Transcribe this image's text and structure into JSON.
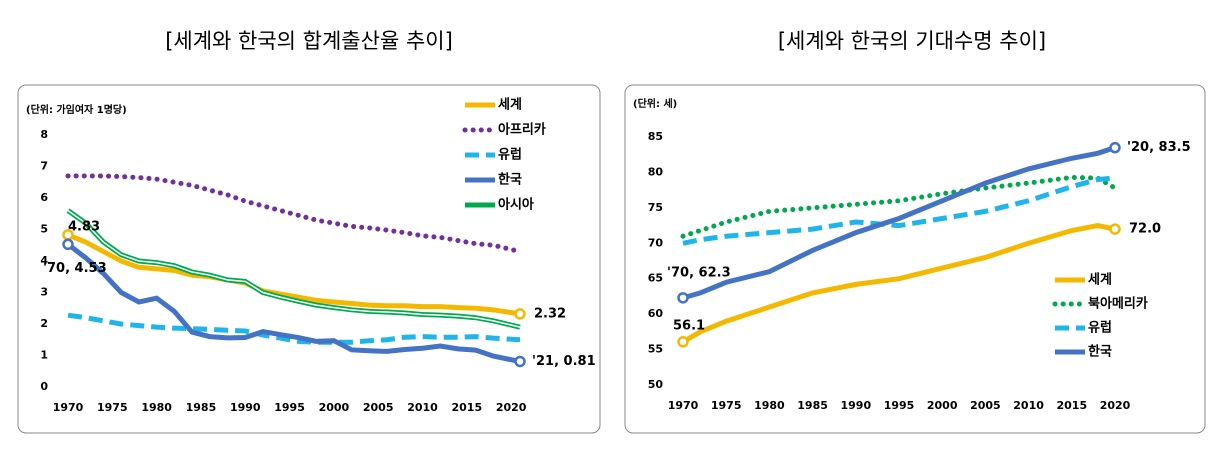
{
  "chart_data": [
    {
      "type": "line",
      "title": "[세계와 한국의 합계출산율 추이]",
      "unit_label": "(단위: 가임여자 1명당)",
      "x": [
        1970,
        1972,
        1974,
        1976,
        1978,
        1980,
        1982,
        1984,
        1986,
        1988,
        1990,
        1992,
        1994,
        1996,
        1998,
        2000,
        2002,
        2004,
        2006,
        2008,
        2010,
        2012,
        2014,
        2016,
        2018,
        2021
      ],
      "xlim": [
        1970,
        2021
      ],
      "xticks": [
        1970,
        1975,
        1980,
        1985,
        1990,
        1995,
        2000,
        2005,
        2010,
        2015,
        2020
      ],
      "ylim": [
        0,
        8
      ],
      "yticks": [
        0,
        1,
        2,
        3,
        4,
        5,
        6,
        7,
        8
      ],
      "series": [
        {
          "name": "세계",
          "color": "#f5b800",
          "style": "solid",
          "values": [
            4.83,
            4.6,
            4.3,
            4.0,
            3.8,
            3.75,
            3.7,
            3.55,
            3.5,
            3.4,
            3.3,
            3.05,
            2.95,
            2.85,
            2.75,
            2.7,
            2.65,
            2.6,
            2.58,
            2.58,
            2.55,
            2.55,
            2.52,
            2.5,
            2.45,
            2.32
          ]
        },
        {
          "name": "아프리카",
          "color": "#7030a0",
          "style": "dotted",
          "values": [
            6.7,
            6.7,
            6.7,
            6.68,
            6.65,
            6.6,
            6.5,
            6.4,
            6.25,
            6.1,
            5.9,
            5.75,
            5.6,
            5.45,
            5.3,
            5.2,
            5.1,
            5.05,
            4.98,
            4.9,
            4.8,
            4.75,
            4.65,
            4.55,
            4.5,
            4.3
          ]
        },
        {
          "name": "유럽",
          "color": "#1fb5ea",
          "style": "dashed",
          "values": [
            2.28,
            2.2,
            2.1,
            2.0,
            1.95,
            1.9,
            1.87,
            1.85,
            1.83,
            1.8,
            1.78,
            1.65,
            1.55,
            1.45,
            1.42,
            1.42,
            1.42,
            1.47,
            1.5,
            1.58,
            1.6,
            1.58,
            1.58,
            1.6,
            1.55,
            1.5
          ]
        },
        {
          "name": "한국",
          "color": "#4472c4",
          "style": "solid",
          "values": [
            4.53,
            4.1,
            3.6,
            3.0,
            2.7,
            2.82,
            2.4,
            1.74,
            1.6,
            1.56,
            1.57,
            1.76,
            1.66,
            1.57,
            1.45,
            1.47,
            1.18,
            1.15,
            1.13,
            1.19,
            1.23,
            1.3,
            1.21,
            1.17,
            0.98,
            0.81
          ]
        },
        {
          "name": "아시아",
          "color": "#00a850",
          "style": "double",
          "values": [
            5.6,
            5.2,
            4.6,
            4.2,
            4.0,
            3.95,
            3.85,
            3.65,
            3.55,
            3.4,
            3.35,
            3.0,
            2.85,
            2.72,
            2.6,
            2.52,
            2.45,
            2.4,
            2.38,
            2.35,
            2.3,
            2.28,
            2.25,
            2.2,
            2.1,
            1.9
          ]
        }
      ],
      "annotations": [
        "4.83",
        "'70, 4.53",
        "2.32",
        "'21, 0.81"
      ]
    },
    {
      "type": "line",
      "title": "[세계와 한국의 기대수명 추이]",
      "unit_label": "(단위: 세)",
      "x": [
        1970,
        1972,
        1975,
        1980,
        1985,
        1990,
        1995,
        2000,
        2005,
        2010,
        2015,
        2018,
        2020
      ],
      "xlim": [
        1970,
        2020
      ],
      "xticks": [
        1970,
        1975,
        1980,
        1985,
        1990,
        1995,
        2000,
        2005,
        2010,
        2015,
        2020
      ],
      "ylim": [
        50,
        85
      ],
      "yticks": [
        50,
        55,
        60,
        65,
        70,
        75,
        80,
        85
      ],
      "series": [
        {
          "name": "세계",
          "color": "#f5b800",
          "style": "solid",
          "values": [
            56.1,
            57.5,
            59,
            61,
            63,
            64.2,
            65,
            66.5,
            68,
            70,
            71.8,
            72.5,
            72.0
          ]
        },
        {
          "name": "북아메리카",
          "color": "#00a850",
          "style": "dotted",
          "values": [
            71,
            71.8,
            73,
            74.5,
            75,
            75.5,
            76,
            77,
            77.8,
            78.5,
            79.3,
            79.2,
            77.8
          ]
        },
        {
          "name": "유럽",
          "color": "#1fb5ea",
          "style": "dashed",
          "values": [
            70,
            70.5,
            71,
            71.5,
            72,
            73,
            72.5,
            73.5,
            74.5,
            76,
            78,
            79,
            79.2
          ]
        },
        {
          "name": "한국",
          "color": "#4472c4",
          "style": "solid",
          "values": [
            62.3,
            63,
            64.5,
            66,
            69,
            71.5,
            73.5,
            76,
            78.5,
            80.5,
            82,
            82.7,
            83.5
          ]
        }
      ],
      "annotations": [
        "'20, 83.5",
        "72.0",
        "'70, 62.3",
        "56.1"
      ]
    }
  ]
}
